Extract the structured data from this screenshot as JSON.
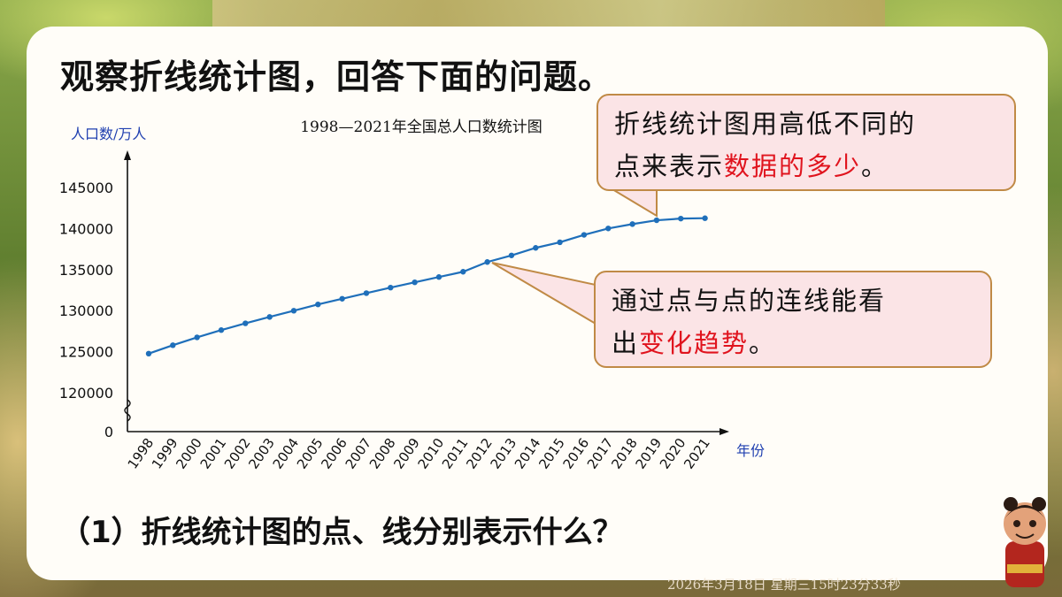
{
  "heading": "观察折线统计图，回答下面的问题。",
  "question": "（1）折线统计图的点、线分别表示什么？",
  "bubble1": {
    "line1": "折线统计图用高低不同的",
    "line2_a": "点来表示",
    "line2_red": "数据的多少",
    "line2_b": "。"
  },
  "bubble2": {
    "line1": "通过点与点的连线能看",
    "line2_a": "出",
    "line2_red": "变化趋势",
    "line2_b": "。"
  },
  "timestamp": "2026年3月18日 星期三15时23分33秒",
  "colors": {
    "line": "#1f6fba",
    "axis_label": "#1f3fb0",
    "highlight": "#e0141e"
  },
  "chart_data": {
    "type": "line",
    "title": "1998—2021年全国总人口数统计图",
    "ylabel": "人口数/万人",
    "xlabel": "年份",
    "x": [
      "1998",
      "1999",
      "2000",
      "2001",
      "2002",
      "2003",
      "2004",
      "2005",
      "2006",
      "2007",
      "2008",
      "2009",
      "2010",
      "2011",
      "2012",
      "2013",
      "2014",
      "2015",
      "2016",
      "2017",
      "2018",
      "2019",
      "2020",
      "2021"
    ],
    "series": [
      {
        "values": [
          124761,
          125786,
          126743,
          127627,
          128453,
          129227,
          129988,
          130756,
          131448,
          132129,
          132802,
          133450,
          134091,
          134735,
          135922,
          136726,
          137646,
          138326,
          139232,
          140011,
          140541,
          141008,
          141212,
          141260
        ]
      }
    ],
    "yticks": [
      "0",
      "120000",
      "125000",
      "130000",
      "135000",
      "140000",
      "145000"
    ],
    "ylim": [
      120000,
      145000
    ],
    "axis_break": true,
    "grid": false,
    "legend": "none"
  }
}
